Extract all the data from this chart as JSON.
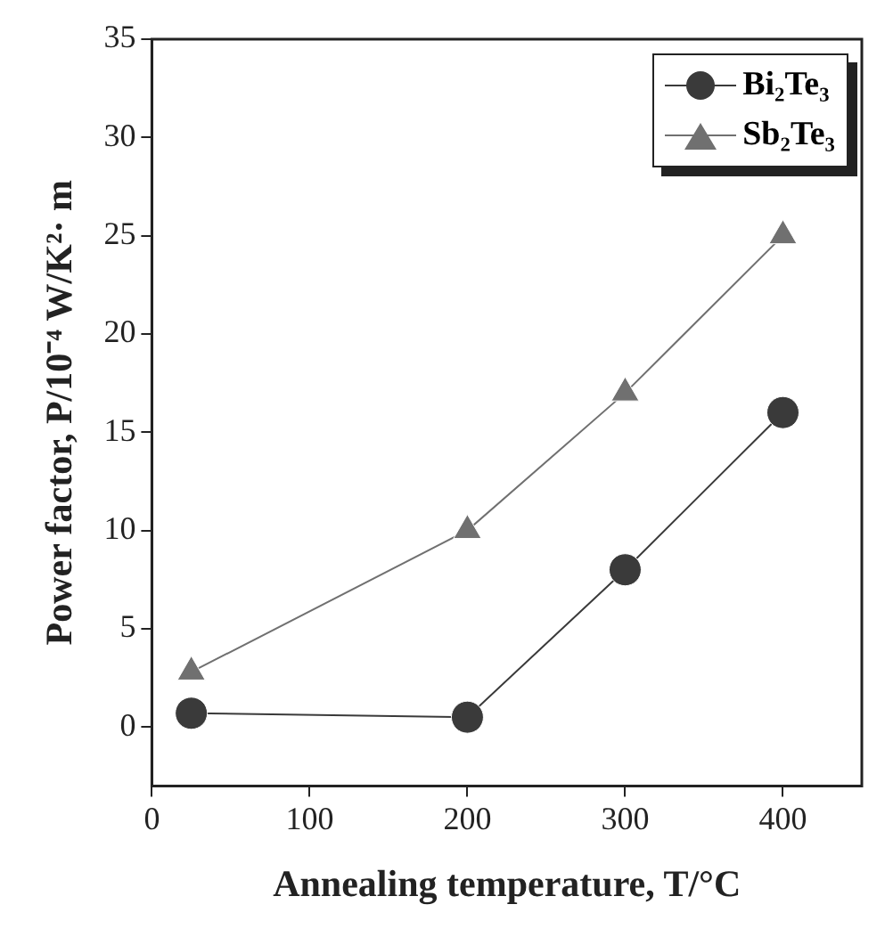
{
  "chart_data": {
    "type": "line",
    "xlabel": "Annealing temperature, T/°C",
    "ylabel": "Power factor, P/10⁻⁴ W/K²· m",
    "x": [
      25,
      200,
      300,
      400
    ],
    "series": [
      {
        "name": "Bi₂Te₃",
        "color": "#3a3a3a",
        "marker": "circle",
        "values": [
          0.7,
          0.5,
          8,
          16
        ]
      },
      {
        "name": "Sb₂Te₃",
        "color": "#707070",
        "marker": "triangle",
        "values": [
          2.8,
          10,
          17,
          25
        ]
      }
    ],
    "xlim": [
      0,
      450
    ],
    "xticks": [
      0,
      100,
      200,
      300,
      400
    ],
    "ylim": [
      -3,
      35
    ],
    "yticks": [
      0,
      5,
      10,
      15,
      20,
      25,
      30,
      35
    ],
    "grid": false,
    "legend": "top right",
    "line_style": "solid"
  }
}
